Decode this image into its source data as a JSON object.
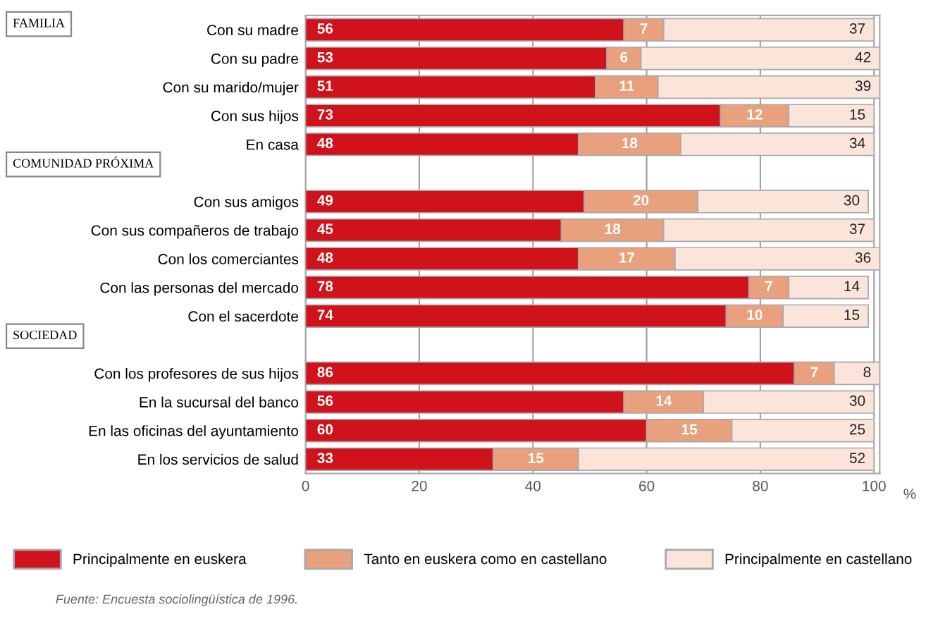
{
  "chart_data": {
    "type": "bar",
    "orientation": "horizontal",
    "stacked": true,
    "categories": [
      "Con su madre",
      "Con su padre",
      "Con su marido/mujer",
      "Con sus hijos",
      "En casa",
      null,
      "Con sus amigos",
      "Con sus compañeros de trabajo",
      "Con los comerciantes",
      "Con las personas del mercado",
      "Con el sacerdote",
      null,
      "Con los profesores de sus hijos",
      "En la sucursal del banco",
      "En las oficinas del ayuntamiento",
      "En los servicios de salud"
    ],
    "series": [
      {
        "name": "Principalmente en euskera",
        "color": "#d0121b",
        "values": [
          56,
          53,
          51,
          73,
          48,
          null,
          49,
          45,
          48,
          78,
          74,
          null,
          86,
          56,
          60,
          33
        ]
      },
      {
        "name": "Tanto en euskera como en castellano",
        "color": "#e9a07c",
        "values": [
          7,
          6,
          11,
          12,
          18,
          null,
          20,
          18,
          17,
          7,
          10,
          null,
          7,
          14,
          15,
          15
        ]
      },
      {
        "name": "Principalmente en castellano",
        "color": "#fbe4da",
        "values": [
          37,
          42,
          39,
          15,
          34,
          null,
          30,
          37,
          36,
          14,
          15,
          null,
          8,
          30,
          25,
          52
        ]
      }
    ],
    "xlim": [
      0,
      101
    ],
    "xticks": [
      0,
      20,
      40,
      60,
      80,
      100
    ],
    "xlabel": "%",
    "grid": "x",
    "data_labels": true,
    "legend": "bottom",
    "annotations": [
      "FAMILIA",
      "COMUNIDAD PRÓXIMA",
      "SOCIEDAD",
      "Fuente: Encuesta sociolingüística de 1996."
    ]
  }
}
